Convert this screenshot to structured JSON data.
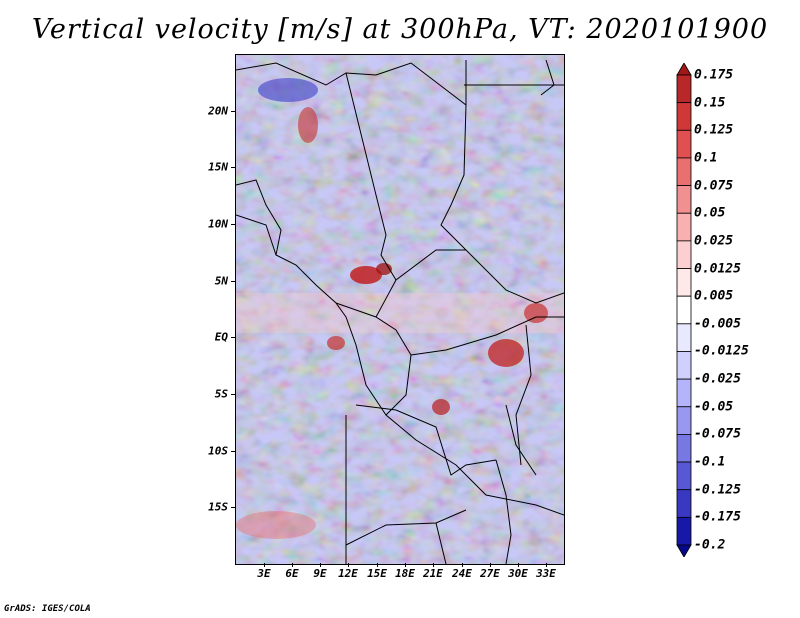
{
  "title": "Vertical velocity [m/s] at 300hPa, VT: 2020101900",
  "credit": "GrADS: IGES/COLA",
  "lat_labels": [
    "20N",
    "15N",
    "10N",
    "5N",
    "EQ",
    "5S",
    "10S",
    "15S"
  ],
  "lon_labels": [
    "3E",
    "6E",
    "9E",
    "12E",
    "15E",
    "18E",
    "21E",
    "24E",
    "27E",
    "30E",
    "33E"
  ],
  "colorbar": {
    "labels": [
      "0.175",
      "0.15",
      "0.125",
      "0.1",
      "0.075",
      "0.05",
      "0.025",
      "0.0125",
      "0.005",
      "-0.005",
      "-0.0125",
      "-0.025",
      "-0.05",
      "-0.075",
      "-0.1",
      "-0.125",
      "-0.175",
      "-0.2"
    ],
    "colors": [
      "#a01818",
      "#b82828",
      "#d03838",
      "#e05050",
      "#e87070",
      "#f09090",
      "#f8b0b0",
      "#fcd0d0",
      "#fee8e8",
      "#ffffff",
      "#e8e8ff",
      "#d0d0ff",
      "#b4b4fa",
      "#9898f0",
      "#7878e2",
      "#5858d4",
      "#3838c0",
      "#1818a8",
      "#08088a"
    ]
  }
}
